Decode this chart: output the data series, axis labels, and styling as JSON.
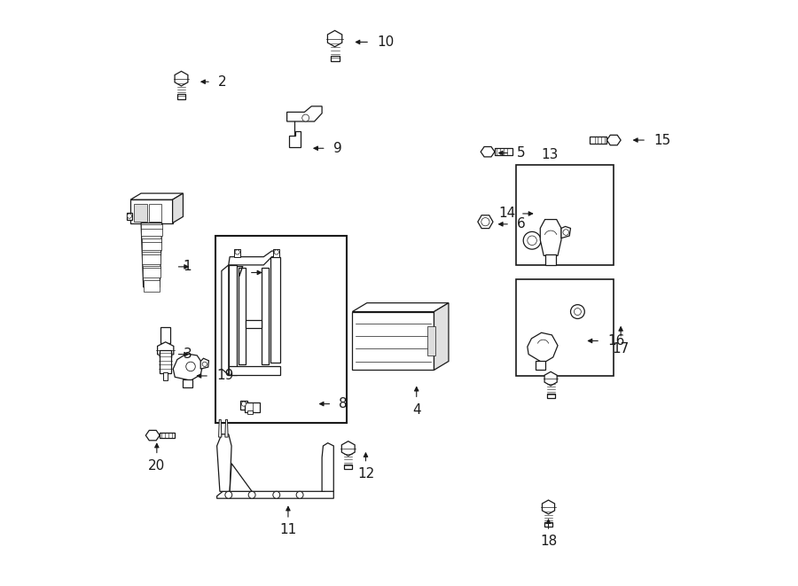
{
  "bg_color": "#ffffff",
  "lc": "#1a1a1a",
  "figsize": [
    9.0,
    6.61
  ],
  "dpi": 100,
  "labels": {
    "1": [
      0.145,
      0.545,
      0.118,
      0.545,
      "left"
    ],
    "2": [
      0.155,
      0.862,
      0.178,
      0.862,
      "left"
    ],
    "3": [
      0.145,
      0.395,
      0.118,
      0.395,
      "left"
    ],
    "4": [
      0.53,
      0.345,
      0.53,
      0.318,
      "center"
    ],
    "5": [
      0.665,
      0.74,
      0.69,
      0.74,
      "left"
    ],
    "6": [
      0.665,
      0.618,
      0.69,
      0.618,
      "left"
    ],
    "7": [
      0.27,
      0.535,
      0.243,
      0.535,
      "right"
    ],
    "8": [
      0.358,
      0.31,
      0.385,
      0.31,
      "left"
    ],
    "9": [
      0.348,
      0.748,
      0.375,
      0.748,
      "left"
    ],
    "10": [
      0.42,
      0.93,
      0.45,
      0.93,
      "left"
    ],
    "11": [
      0.31,
      0.14,
      0.31,
      0.112,
      "center"
    ],
    "12": [
      0.443,
      0.232,
      0.443,
      0.208,
      "center"
    ],
    "13": [
      0.795,
      0.72,
      0.795,
      0.748,
      "center"
    ],
    "14": [
      0.735,
      0.636,
      0.708,
      0.636,
      "right"
    ],
    "15": [
      0.896,
      0.762,
      0.924,
      0.762,
      "left"
    ],
    "16": [
      0.818,
      0.418,
      0.845,
      0.418,
      "left"
    ],
    "17": [
      0.88,
      0.448,
      0.88,
      0.422,
      "center"
    ],
    "18": [
      0.756,
      0.118,
      0.756,
      0.092,
      "center"
    ],
    "19": [
      0.148,
      0.358,
      0.175,
      0.358,
      "left"
    ],
    "20": [
      0.085,
      0.248,
      0.085,
      0.222,
      "center"
    ]
  }
}
